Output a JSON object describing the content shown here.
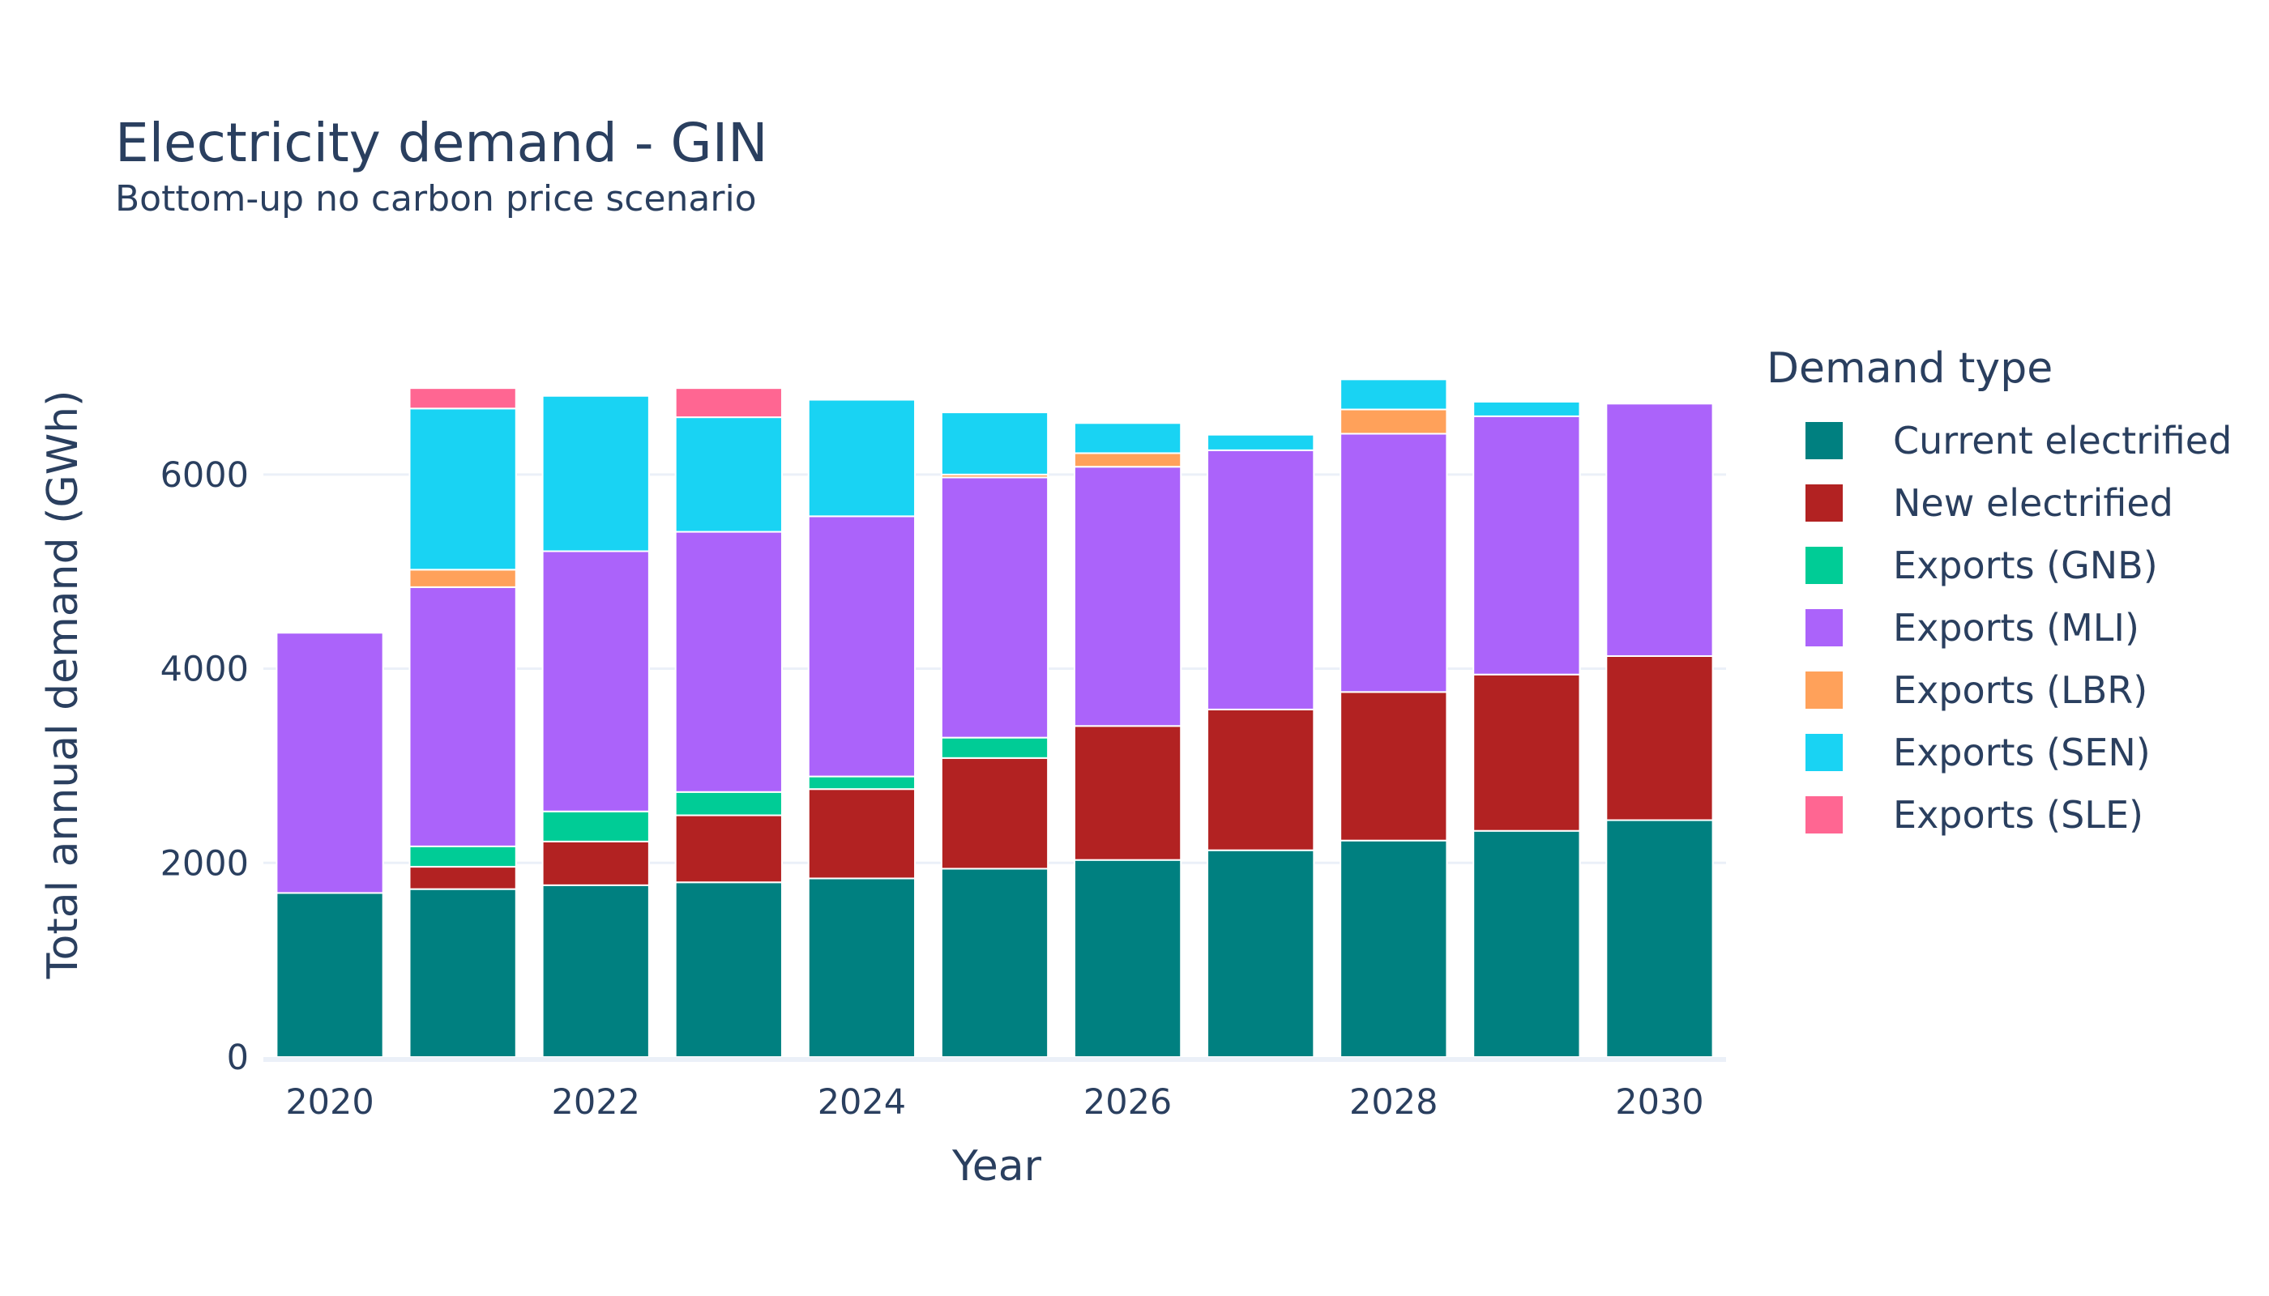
{
  "chart_data": {
    "type": "bar",
    "stacked": true,
    "title": "Electricity demand - GIN",
    "subtitle": "Bottom-up no carbon price scenario",
    "xlabel": "Year",
    "ylabel": "Total annual demand (GWh)",
    "x": [
      2020,
      2021,
      2022,
      2023,
      2024,
      2025,
      2026,
      2027,
      2028,
      2029,
      2030
    ],
    "x_tick_labels": [
      "2020",
      "2022",
      "2024",
      "2026",
      "2028",
      "2030"
    ],
    "y_ticks": [
      0,
      2000,
      4000,
      6000
    ],
    "y_tick_labels": [
      "0",
      "2000",
      "4000",
      "6000"
    ],
    "ylim": [
      0,
      7300
    ],
    "grid": true,
    "legend_title": "Demand type",
    "legend_position": "right",
    "series": [
      {
        "name": "Current electrified",
        "color": "#008080",
        "values": [
          1690,
          1730,
          1770,
          1800,
          1840,
          1940,
          2030,
          2130,
          2230,
          2330,
          2440
        ]
      },
      {
        "name": "New electrified",
        "color": "#b22222",
        "values": [
          0,
          230,
          450,
          690,
          920,
          1140,
          1380,
          1450,
          1530,
          1610,
          1690
        ]
      },
      {
        "name": "Exports (GNB)",
        "color": "#00cc96",
        "values": [
          0,
          210,
          310,
          240,
          130,
          210,
          0,
          0,
          0,
          0,
          0
        ]
      },
      {
        "name": "Exports (MLI)",
        "color": "#ab63fa",
        "values": [
          2680,
          2670,
          2680,
          2680,
          2680,
          2680,
          2670,
          2670,
          2660,
          2660,
          2600
        ]
      },
      {
        "name": "Exports (LBR)",
        "color": "#ffa15a",
        "values": [
          0,
          180,
          0,
          0,
          0,
          30,
          140,
          0,
          250,
          0,
          0
        ]
      },
      {
        "name": "Exports (SEN)",
        "color": "#19d3f3",
        "values": [
          0,
          1660,
          1600,
          1180,
          1200,
          640,
          310,
          160,
          310,
          150,
          0
        ]
      },
      {
        "name": "Exports (SLE)",
        "color": "#ff6692",
        "values": [
          0,
          210,
          0,
          300,
          0,
          0,
          0,
          0,
          0,
          0,
          0
        ]
      }
    ]
  }
}
